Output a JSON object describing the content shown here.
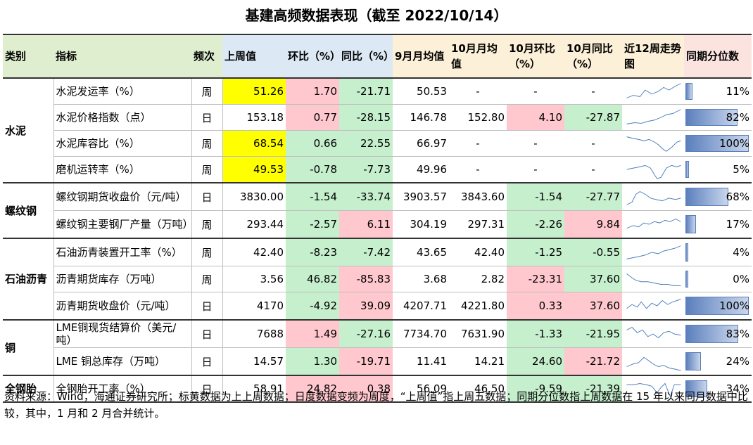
{
  "title": "基建高频数据表现（截至 2022/10/14）",
  "headers": [
    "类别",
    "指标",
    "频次",
    "上周值",
    "环比（%）",
    "同比（%）",
    "9月月均值",
    "10月月均值",
    "10月环比（%）",
    "10月同比（%）",
    "近12周走势图",
    "同期分位数"
  ],
  "groups": [
    {
      "name": "水泥",
      "rows": [
        {
          "indicator": "水泥发运率（%）",
          "freq": "周",
          "last": "51.26",
          "wow": "1.70",
          "yoy": "-21.71",
          "sep": "50.53",
          "oct": "-",
          "oct_mom": "-",
          "oct_yoy": "-",
          "pct": "11%",
          "pct_value": 0.11
        },
        {
          "indicator": "水泥价格指数（点）",
          "freq": "日",
          "last": "153.18",
          "wow": "0.77",
          "yoy": "-28.15",
          "sep": "146.78",
          "oct": "152.80",
          "oct_mom": "4.10",
          "oct_yoy": "-27.87",
          "pct": "82%",
          "pct_value": 0.82
        },
        {
          "indicator": "水泥库容比（%）",
          "freq": "周",
          "last": "68.54",
          "wow": "0.66",
          "yoy": "22.55",
          "sep": "66.97",
          "oct": "-",
          "oct_mom": "-",
          "oct_yoy": "-",
          "pct": "100%",
          "pct_value": 1.0
        },
        {
          "indicator": "磨机运转率（%）",
          "freq": "周",
          "last": "49.53",
          "wow": "-0.78",
          "yoy": "-7.73",
          "sep": "49.96",
          "oct": "-",
          "oct_mom": "-",
          "oct_yoy": "-",
          "pct": "5%",
          "pct_value": 0.05
        }
      ]
    },
    {
      "name": "螺纹钢",
      "rows": [
        {
          "indicator": "螺纹钢期货收盘价（元/吨）",
          "freq": "日",
          "last": "3830.00",
          "wow": "-1.54",
          "yoy": "-33.74",
          "sep": "3903.57",
          "oct": "3843.60",
          "oct_mom": "-1.54",
          "oct_yoy": "-27.77",
          "pct": "68%",
          "pct_value": 0.68
        },
        {
          "indicator": "螺纹钢主要钢厂产量（万吨）",
          "freq": "周",
          "last": "293.44",
          "wow": "-2.57",
          "yoy": "6.11",
          "sep": "304.19",
          "oct": "297.31",
          "oct_mom": "-2.26",
          "oct_yoy": "9.84",
          "pct": "17%",
          "pct_value": 0.17
        }
      ]
    },
    {
      "name": "石油沥青",
      "rows": [
        {
          "indicator": "石油沥青装置开工率（%）",
          "freq": "周",
          "last": "42.40",
          "wow": "-8.23",
          "yoy": "-7.42",
          "sep": "43.65",
          "oct": "42.40",
          "oct_mom": "-1.25",
          "oct_yoy": "-0.55",
          "pct": "4%",
          "pct_value": 0.04
        },
        {
          "indicator": "沥青期货库存（万吨）",
          "freq": "周",
          "last": "3.56",
          "wow": "46.82",
          "yoy": "-85.83",
          "sep": "3.68",
          "oct": "2.82",
          "oct_mom": "-23.31",
          "oct_yoy": "37.60",
          "pct": "0%",
          "pct_value": 0.0
        },
        {
          "indicator": "沥青期货收盘价（元/吨）",
          "freq": "日",
          "last": "4170",
          "wow": "-4.92",
          "yoy": "39.09",
          "sep": "4207.71",
          "oct": "4221.80",
          "oct_mom": "0.33",
          "oct_yoy": "37.60",
          "pct": "100%",
          "pct_value": 1.0
        }
      ]
    },
    {
      "name": "铜",
      "rows": [
        {
          "indicator": "LME铜现货结算价（美元/吨）",
          "freq": "日",
          "last": "7688",
          "wow": "1.49",
          "yoy": "-27.16",
          "sep": "7734.70",
          "oct": "7631.90",
          "oct_mom": "-1.33",
          "oct_yoy": "-21.95",
          "pct": "83%",
          "pct_value": 0.83
        },
        {
          "indicator": "LME 铜总库存（万吨）",
          "freq": "日",
          "last": "14.57",
          "wow": "1.30",
          "yoy": "-19.71",
          "sep": "11.41",
          "oct": "14.21",
          "oct_mom": "24.60",
          "oct_yoy": "-21.72",
          "pct": "24%",
          "pct_value": 0.24
        }
      ]
    },
    {
      "name": "全钢胎",
      "rows": [
        {
          "indicator": "全钢胎开工率（%）",
          "freq": "日",
          "last": "58.91",
          "wow": "24.82",
          "yoy": "0.38",
          "sep": "56.09",
          "oct": "46.50",
          "oct_mom": "-9.59",
          "oct_yoy": "-21.39",
          "pct": "34%",
          "pct_value": 0.34
        }
      ]
    }
  ],
  "footnote": "资料来源：Wind，海通证券研究所；标黄数据为上上周数据；日度数据变频为周度，“上周值”指上周五数据；同期分位数指上周数据在 15 年以来同月数据中比较，其中，1 月和 2 月合并统计。",
  "colors": {
    "yellow": "#ffff00",
    "red": "#ffc7ce",
    "green": "#c6efce",
    "spark": "#4a7ebb",
    "bar": "#5b7fbd"
  }
}
